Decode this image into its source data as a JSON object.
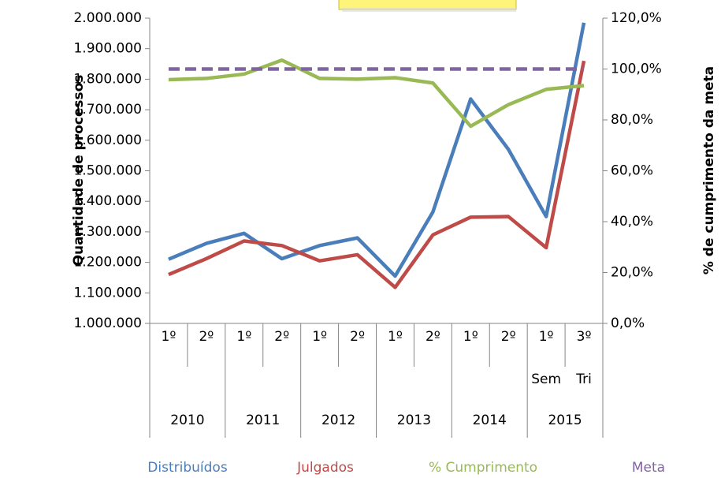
{
  "chart_data": {
    "type": "line",
    "y_axis_label": "Quantidade de processos",
    "y2_axis_label": "% de cumprimento da meta",
    "categories": [
      "1º",
      "2º",
      "1º",
      "2º",
      "1º",
      "2º",
      "1º",
      "2º",
      "1º",
      "2º",
      "1º",
      "3º"
    ],
    "category_sublabels": [
      null,
      null,
      null,
      null,
      null,
      null,
      null,
      null,
      null,
      null,
      "Sem",
      "Tri"
    ],
    "groups": [
      "2010",
      "2011",
      "2012",
      "2013",
      "2014",
      "2015"
    ],
    "series": [
      {
        "name": "Distribuídos",
        "color": "#4a7ebb",
        "values": [
          1210000,
          1262000,
          1295000,
          1212000,
          1255000,
          1280000,
          1155000,
          1365000,
          1735000,
          1570000,
          1350000,
          1985000
        ]
      },
      {
        "name": "Julgados",
        "color": "#be4b48",
        "values": [
          1160000,
          1212000,
          1270000,
          1255000,
          1205000,
          1225000,
          1118000,
          1290000,
          1348000,
          1350000,
          1248000,
          1860000
        ]
      },
      {
        "name": "% Cumprimento",
        "color": "#98b954",
        "axis": "y2",
        "values": [
          95.8,
          96.3,
          98,
          103.5,
          96.3,
          96,
          96.6,
          94.5,
          77.5,
          86,
          92,
          93.5
        ]
      },
      {
        "name": "Meta",
        "color": "#8064a2",
        "axis": "y2",
        "dashed": true,
        "values": [
          100,
          100,
          100,
          100,
          100,
          100,
          100,
          100,
          100,
          100,
          100,
          100
        ]
      }
    ],
    "ylim": [
      1000000,
      2000000
    ],
    "yticks": [
      {
        "value": 1000000,
        "label": "1.000.000"
      },
      {
        "value": 1100000,
        "label": "1.100.000"
      },
      {
        "value": 1200000,
        "label": "1.200.000"
      },
      {
        "value": 1300000,
        "label": "1.300.000"
      },
      {
        "value": 1400000,
        "label": "1.400.000"
      },
      {
        "value": 1500000,
        "label": "1.500.000"
      },
      {
        "value": 1600000,
        "label": "1.600.000"
      },
      {
        "value": 1700000,
        "label": "1.700.000"
      },
      {
        "value": 1800000,
        "label": "1.800.000"
      },
      {
        "value": 1900000,
        "label": "1.900.000"
      },
      {
        "value": 2000000,
        "label": "2.000.000"
      }
    ],
    "y2lim": [
      0,
      120
    ],
    "y2ticks": [
      {
        "value": 0,
        "label": "0,0%"
      },
      {
        "value": 20,
        "label": "20,0%"
      },
      {
        "value": 40,
        "label": "40,0%"
      },
      {
        "value": 60,
        "label": "60,0%"
      },
      {
        "value": 80,
        "label": "80,0%"
      },
      {
        "value": 100,
        "label": "100,0%"
      },
      {
        "value": 120,
        "label": "120,0%"
      }
    ],
    "grid": false,
    "legend": "bottom"
  }
}
